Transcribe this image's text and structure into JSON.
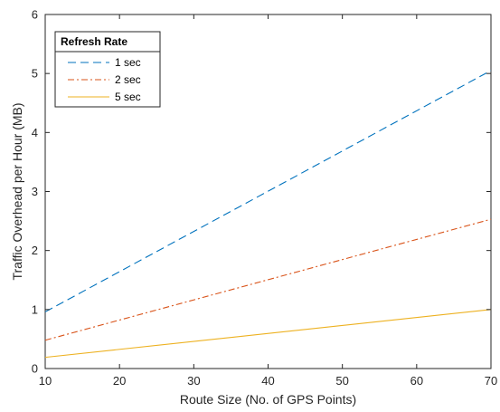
{
  "chart_data": {
    "type": "line",
    "xlabel": "Route Size (No. of GPS Points)",
    "ylabel": "Traffic Overhead per Hour (MB)",
    "xlim": [
      10,
      70
    ],
    "ylim": [
      0,
      6
    ],
    "xticks": [
      10,
      20,
      30,
      40,
      50,
      60,
      70
    ],
    "yticks": [
      0,
      1,
      2,
      3,
      4,
      5,
      6
    ],
    "grid": false,
    "legend": {
      "title": "Refresh Rate",
      "placement": "top-left"
    },
    "series": [
      {
        "name": "1 sec",
        "color": "#0072BD",
        "style": "dashed",
        "x": [
          10,
          70
        ],
        "y": [
          0.96,
          5.05
        ]
      },
      {
        "name": "2 sec",
        "color": "#D95319",
        "style": "dash-dot",
        "x": [
          10,
          70
        ],
        "y": [
          0.48,
          2.53
        ]
      },
      {
        "name": "5 sec",
        "color": "#EDB120",
        "style": "solid",
        "x": [
          10,
          70
        ],
        "y": [
          0.19,
          1.0
        ]
      }
    ]
  }
}
